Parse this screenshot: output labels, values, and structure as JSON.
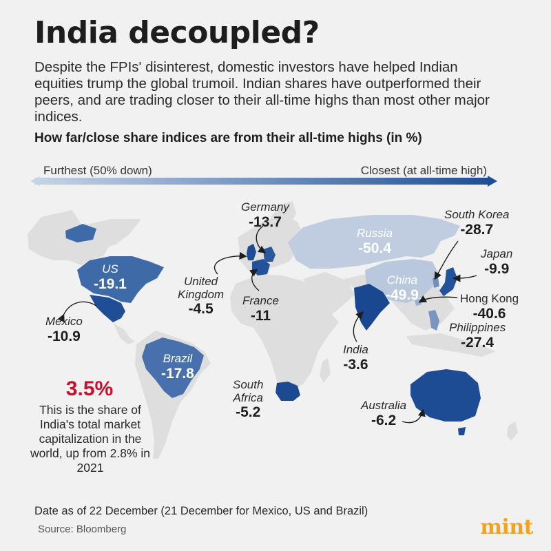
{
  "header": {
    "title": "India decoupled?",
    "intro": "Despite the FPIs' disinterest, domestic investors have helped Indian equities trump the global trumoil. Indian shares have outperformed their peers, and are trading closer to their all-time highs than most other major indices.",
    "subtitle": "How far/close share indices are from their all-time highs (in %)"
  },
  "scale": {
    "left_label": "Furthest (50% down)",
    "right_label": "Closest (at all-time high)",
    "color_start": "#c5d4e6",
    "color_end": "#1f4e96"
  },
  "countries": {
    "germany": {
      "name": "Germany",
      "value": "-13.7"
    },
    "south_korea": {
      "name": "South Korea",
      "value": "-28.7"
    },
    "russia": {
      "name": "Russia",
      "value": "-50.4"
    },
    "japan": {
      "name": "Japan",
      "value": "-9.9"
    },
    "us": {
      "name": "US",
      "value": "-19.1"
    },
    "united_kingdom": {
      "name_line1": "United",
      "name_line2": "Kingdom",
      "value": "-4.5"
    },
    "france": {
      "name": "France",
      "value": "-11"
    },
    "china": {
      "name": "China",
      "value": "-49.9"
    },
    "hong_kong": {
      "name": "Hong Kong",
      "value": "-40.6"
    },
    "mexico": {
      "name": "Mexico",
      "value": "-10.9"
    },
    "philippines": {
      "name": "Philippines",
      "value": "-27.4"
    },
    "india": {
      "name": "India",
      "value": "-3.6"
    },
    "brazil": {
      "name": "Brazil",
      "value": "-17.8"
    },
    "south_africa": {
      "name_line1": "South",
      "name_line2": "Africa",
      "value": "-5.2"
    },
    "australia": {
      "name": "Australia",
      "value": "-6.2"
    }
  },
  "callout": {
    "percent": "3.5%",
    "text": "This is the share of India's total market capitalization in the world, up from 2.8% in 2021"
  },
  "footer": {
    "note": "Date as of 22 December (21 December for Mexico, US and Brazil)",
    "source": "Source: Bloomberg",
    "brand": "mint"
  },
  "colors": {
    "land_default": "#dedede",
    "russia": "#c0cde0",
    "china": "#b9c8dc",
    "us": "#3e6aa8",
    "mexico": "#1f4e96",
    "brazil": "#4870ad",
    "uk": "#1e4b94",
    "germany": "#2a589c",
    "france": "#24529a",
    "india": "#1a4890",
    "south_africa": "#1c4a92",
    "australia": "#1e4c94",
    "japan": "#23519a",
    "south_korea": "#7390bd",
    "hong_kong": "#98aed0",
    "philippines": "#7a95c0",
    "highlight": "#c8102e",
    "brand": "#f4a21b"
  }
}
